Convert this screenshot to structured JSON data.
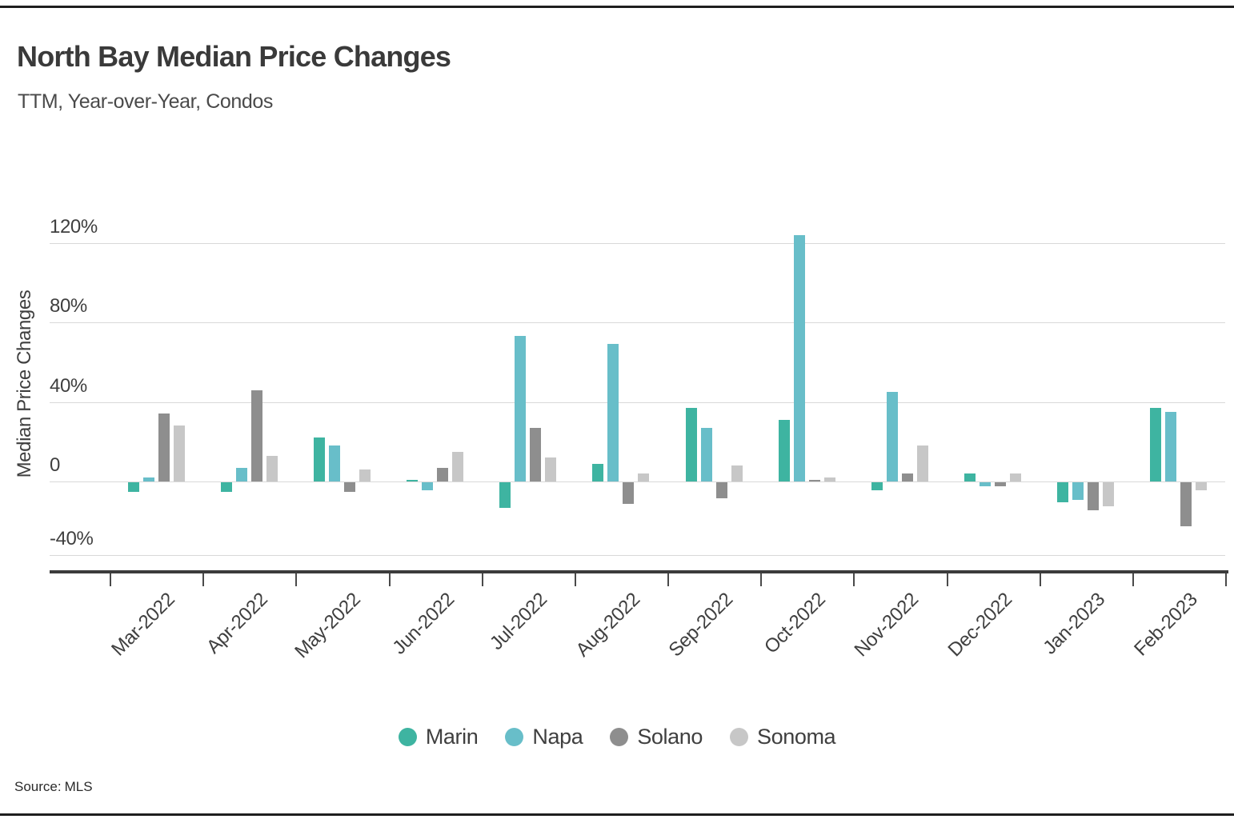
{
  "page": {
    "source_prefix": "Source:"
  },
  "chart_data": {
    "type": "bar",
    "title": "North Bay Median Price Changes",
    "subtitle": "TTM, Year-over-Year, Condos",
    "xlabel": "",
    "ylabel": "Median Price Changes",
    "unit": "%",
    "ylim": [
      -45,
      125
    ],
    "grid": true,
    "legend_position": "bottom",
    "x_tick_rotation": 45,
    "source": "MLS",
    "categories": [
      "Mar-2022",
      "Apr-2022",
      "May-2022",
      "Jun-2022",
      "Jul-2022",
      "Aug-2022",
      "Sep-2022",
      "Oct-2022",
      "Nov-2022",
      "Dec-2022",
      "Jan-2023",
      "Feb-2023"
    ],
    "y_ticks": [
      {
        "value": 120,
        "label": "120%"
      },
      {
        "value": 80,
        "label": "80%"
      },
      {
        "value": 40,
        "label": "40%"
      },
      {
        "value": 0,
        "label": "0"
      },
      {
        "value": -40,
        "label": "-40%"
      }
    ],
    "series": [
      {
        "name": "Marin",
        "color": "#3eb4a1",
        "values": [
          -5,
          -5,
          22,
          1,
          -13,
          9,
          37,
          31,
          -4,
          4,
          -10,
          37
        ]
      },
      {
        "name": "Napa",
        "color": "#68bec9",
        "values": [
          2,
          7,
          18,
          -4,
          73,
          69,
          27,
          124,
          45,
          -2,
          -9,
          35
        ]
      },
      {
        "name": "Solano",
        "color": "#8e8e8e",
        "values": [
          34,
          46,
          -5,
          7,
          27,
          -11,
          -8,
          1,
          4,
          -2,
          -14,
          -22
        ]
      },
      {
        "name": "Sonoma",
        "color": "#c7c7c7",
        "values": [
          28,
          13,
          6,
          15,
          12,
          4,
          8,
          2,
          18,
          4,
          -12,
          -4
        ]
      }
    ]
  }
}
